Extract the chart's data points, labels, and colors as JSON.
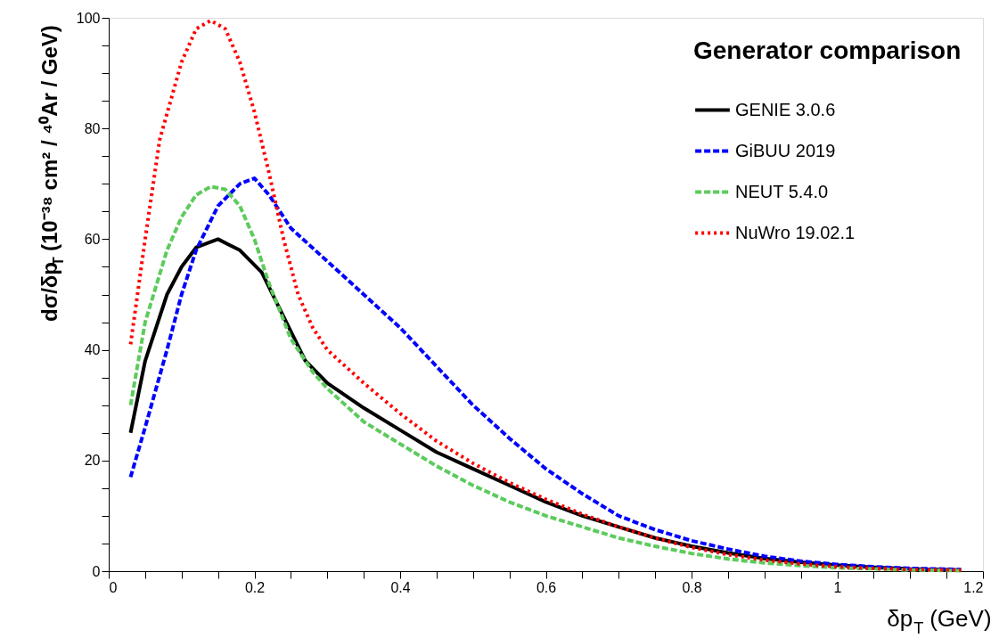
{
  "chart_data": {
    "type": "line",
    "xlabel": "δp$_{T}$ (GeV)",
    "ylabel": "dσ/δp$_{T}$ (10⁻³⁸ cm² / ⁴⁰Ar / GeV)",
    "legend_title": "Generator comparison",
    "legend": "top right",
    "grid": false,
    "marker": "none",
    "xlim": [
      0,
      1.2
    ],
    "ylim": [
      0,
      100
    ],
    "xticks": [
      0,
      {
        "value": 0.05,
        "label": null
      },
      {
        "value": 0.1,
        "label": null
      },
      {
        "value": 0.15,
        "label": null
      },
      0.2,
      {
        "value": 0.25,
        "label": null
      },
      {
        "value": 0.3,
        "label": null
      },
      {
        "value": 0.35,
        "label": null
      },
      0.4,
      {
        "value": 0.45,
        "label": null
      },
      {
        "value": 0.5,
        "label": null
      },
      {
        "value": 0.55,
        "label": null
      },
      0.6,
      {
        "value": 0.65,
        "label": null
      },
      {
        "value": 0.7,
        "label": null
      },
      {
        "value": 0.75,
        "label": null
      },
      0.8,
      {
        "value": 0.85,
        "label": null
      },
      {
        "value": 0.9,
        "label": null
      },
      {
        "value": 0.95,
        "label": null
      },
      1,
      {
        "value": 1.05,
        "label": null
      },
      {
        "value": 1.1,
        "label": null
      },
      {
        "value": 1.15,
        "label": null
      },
      1.2
    ],
    "yticks": [
      0,
      {
        "value": 5,
        "label": null
      },
      {
        "value": 10,
        "label": null
      },
      {
        "value": 15,
        "label": null
      },
      20,
      {
        "value": 25,
        "label": null
      },
      {
        "value": 30,
        "label": null
      },
      {
        "value": 35,
        "label": null
      },
      40,
      {
        "value": 45,
        "label": null
      },
      {
        "value": 50,
        "label": null
      },
      {
        "value": 55,
        "label": null
      },
      60,
      {
        "value": 65,
        "label": null
      },
      {
        "value": 70,
        "label": null
      },
      {
        "value": 75,
        "label": null
      },
      80,
      {
        "value": 85,
        "label": null
      },
      {
        "value": 90,
        "label": null
      },
      {
        "value": 95,
        "label": null
      },
      100
    ],
    "series": [
      {
        "name": "GENIE 3.0.6",
        "color": "#000000",
        "line_style": "solid",
        "x": [
          0.03,
          0.05,
          0.08,
          0.1,
          0.12,
          0.15,
          0.18,
          0.21,
          0.24,
          0.27,
          0.3,
          0.35,
          0.4,
          0.45,
          0.5,
          0.55,
          0.6,
          0.65,
          0.7,
          0.75,
          0.8,
          0.85,
          0.9,
          0.95,
          1.0,
          1.05,
          1.1,
          1.17
        ],
        "values": [
          25,
          38,
          50,
          55,
          58.5,
          60,
          58,
          54,
          46,
          38,
          34,
          29.5,
          25.5,
          21.5,
          18.5,
          15.5,
          12.5,
          10,
          8,
          6,
          4.5,
          3.3,
          2.3,
          1.6,
          1.1,
          0.7,
          0.4,
          0.2
        ]
      },
      {
        "name": "GiBUU 2019",
        "color": "#0000ff",
        "line_style": "dashed",
        "x": [
          0.03,
          0.05,
          0.08,
          0.1,
          0.12,
          0.15,
          0.18,
          0.2,
          0.22,
          0.25,
          0.3,
          0.35,
          0.4,
          0.45,
          0.5,
          0.55,
          0.6,
          0.65,
          0.7,
          0.75,
          0.8,
          0.85,
          0.9,
          0.95,
          1.0,
          1.05,
          1.1,
          1.17
        ],
        "values": [
          17,
          26,
          40,
          50,
          58,
          66,
          70,
          71,
          68,
          62,
          56,
          50,
          44,
          37,
          30,
          24,
          18.5,
          14,
          10,
          7.5,
          5.5,
          4,
          2.7,
          1.8,
          1.2,
          0.8,
          0.5,
          0.3
        ]
      },
      {
        "name": "NEUT 5.4.0",
        "color": "#5ccb5c",
        "line_style": "dashed",
        "x": [
          0.03,
          0.05,
          0.08,
          0.1,
          0.12,
          0.14,
          0.16,
          0.18,
          0.2,
          0.22,
          0.25,
          0.28,
          0.3,
          0.35,
          0.4,
          0.45,
          0.5,
          0.55,
          0.6,
          0.65,
          0.7,
          0.75,
          0.8,
          0.85,
          0.9,
          0.95,
          1.0,
          1.05,
          1.1,
          1.17
        ],
        "values": [
          30,
          45,
          58,
          64,
          68,
          69.5,
          69,
          66,
          60,
          52,
          42,
          36,
          33,
          27,
          23,
          19,
          15.5,
          12.5,
          10,
          8,
          6,
          4.5,
          3.2,
          2.2,
          1.5,
          1,
          0.6,
          0.4,
          0.2,
          0.1
        ]
      },
      {
        "name": "NuWro 19.02.1",
        "color": "#ff0000",
        "line_style": "dotted",
        "x": [
          0.03,
          0.05,
          0.07,
          0.1,
          0.12,
          0.14,
          0.16,
          0.18,
          0.2,
          0.22,
          0.24,
          0.26,
          0.28,
          0.3,
          0.35,
          0.4,
          0.45,
          0.5,
          0.55,
          0.6,
          0.65,
          0.7,
          0.75,
          0.8,
          0.85,
          0.9,
          0.95,
          1.0,
          1.05,
          1.1,
          1.17
        ],
        "values": [
          41,
          60,
          78,
          92,
          98,
          99.5,
          98,
          92,
          83,
          72,
          60,
          50,
          44,
          40,
          34,
          28.5,
          23.5,
          19.5,
          16,
          13,
          10.3,
          8,
          6,
          4.3,
          3,
          2,
          1.3,
          0.8,
          0.5,
          0.3,
          0.2
        ]
      }
    ]
  }
}
